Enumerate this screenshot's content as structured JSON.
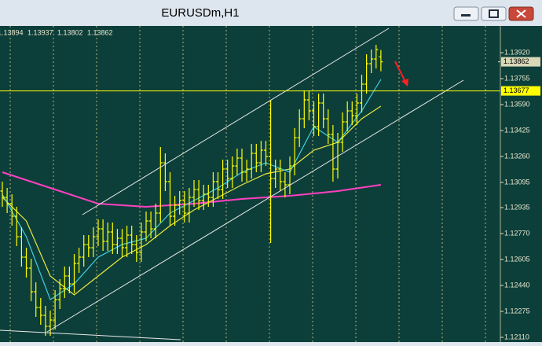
{
  "window": {
    "title": "EURUSDm,H1"
  },
  "chart_data": {
    "type": "ohlc",
    "ylim": [
      1.1209,
      1.1409
    ],
    "yticks": [
      {
        "value": 1.1392,
        "label": "1.13920"
      },
      1.13755,
      {
        "value": 1.1359,
        "label": "1.13590"
      },
      1.13425,
      {
        "value": 1.1326,
        "label": "1.13260"
      },
      1.13095,
      1.12935,
      {
        "value": 1.1277,
        "label": "1.12770"
      },
      1.12605,
      {
        "value": 1.1244,
        "label": "1.12440"
      },
      1.12275,
      {
        "value": 1.1211,
        "label": "1.12110"
      }
    ],
    "series": [
      {
        "color": "#ffff00",
        "values": [
          [
            1.1304,
            1.131,
            1.1294,
            1.13
          ],
          [
            1.13,
            1.1306,
            1.129,
            1.1296
          ],
          [
            1.1296,
            1.1302,
            1.1282,
            1.1288
          ],
          [
            1.1288,
            1.1294,
            1.1269,
            1.1275
          ],
          [
            1.1275,
            1.1281,
            1.1256,
            1.1262
          ],
          [
            1.1262,
            1.1268,
            1.1249,
            1.1255
          ],
          [
            1.1255,
            1.1261,
            1.1234,
            1.124
          ],
          [
            1.124,
            1.1246,
            1.1224,
            1.123
          ],
          [
            1.123,
            1.1236,
            1.1219,
            1.1225
          ],
          [
            1.1225,
            1.1231,
            1.1212,
            1.1218
          ],
          [
            1.1218,
            1.1228,
            1.1212,
            1.1222
          ],
          [
            1.1222,
            1.1241,
            1.1216,
            1.1235
          ],
          [
            1.1235,
            1.1248,
            1.1229,
            1.1242
          ],
          [
            1.1242,
            1.1256,
            1.1236,
            1.125
          ],
          [
            1.125,
            1.1256,
            1.1239,
            1.1245
          ],
          [
            1.1245,
            1.1264,
            1.1239,
            1.1258
          ],
          [
            1.1258,
            1.1268,
            1.1252,
            1.1262
          ],
          [
            1.1262,
            1.1276,
            1.1256,
            1.127
          ],
          [
            1.127,
            1.1276,
            1.1262,
            1.1268
          ],
          [
            1.1268,
            1.1281,
            1.1262,
            1.1275
          ],
          [
            1.1275,
            1.1286,
            1.1269,
            1.128
          ],
          [
            1.128,
            1.1286,
            1.1266,
            1.1272
          ],
          [
            1.1272,
            1.1284,
            1.1266,
            1.1278
          ],
          [
            1.1278,
            1.1284,
            1.1264,
            1.127
          ],
          [
            1.127,
            1.128,
            1.1264,
            1.1274
          ],
          [
            1.1274,
            1.128,
            1.1262,
            1.1268
          ],
          [
            1.1268,
            1.1282,
            1.1262,
            1.1276
          ],
          [
            1.1276,
            1.1282,
            1.1264,
            1.127
          ],
          [
            1.127,
            1.1276,
            1.1259,
            1.1265
          ],
          [
            1.1265,
            1.1284,
            1.1259,
            1.1278
          ],
          [
            1.1278,
            1.1291,
            1.1272,
            1.1285
          ],
          [
            1.1285,
            1.1291,
            1.1274,
            1.128
          ],
          [
            1.128,
            1.1296,
            1.1274,
            1.129
          ],
          [
            1.129,
            1.1332,
            1.1284,
            1.1322
          ],
          [
            1.1322,
            1.1328,
            1.1304,
            1.131
          ],
          [
            1.131,
            1.1316,
            1.1282,
            1.1288
          ],
          [
            1.1288,
            1.1301,
            1.1282,
            1.1295
          ],
          [
            1.1295,
            1.1304,
            1.1289,
            1.1298
          ],
          [
            1.1298,
            1.1304,
            1.1284,
            1.129
          ],
          [
            1.129,
            1.1306,
            1.1284,
            1.13
          ],
          [
            1.13,
            1.1311,
            1.1294,
            1.1305
          ],
          [
            1.1305,
            1.1311,
            1.1292,
            1.1298
          ],
          [
            1.1298,
            1.1308,
            1.1292,
            1.1302
          ],
          [
            1.1302,
            1.1308,
            1.1294,
            1.13
          ],
          [
            1.13,
            1.1316,
            1.1294,
            1.131
          ],
          [
            1.131,
            1.1316,
            1.1299,
            1.1305
          ],
          [
            1.1305,
            1.1324,
            1.1299,
            1.1318
          ],
          [
            1.1318,
            1.1324,
            1.1306,
            1.1312
          ],
          [
            1.1312,
            1.1326,
            1.1306,
            1.132
          ],
          [
            1.132,
            1.1331,
            1.1314,
            1.1325
          ],
          [
            1.1325,
            1.1331,
            1.131,
            1.1316
          ],
          [
            1.1316,
            1.1324,
            1.131,
            1.1318
          ],
          [
            1.1318,
            1.1334,
            1.1312,
            1.1328
          ],
          [
            1.1328,
            1.1334,
            1.1316,
            1.1322
          ],
          [
            1.1322,
            1.1336,
            1.1316,
            1.133
          ],
          [
            1.133,
            1.1336,
            1.132,
            1.1326
          ],
          [
            1.1326,
            1.1362,
            1.1271,
            1.1312
          ],
          [
            1.1312,
            1.1324,
            1.1306,
            1.1318
          ],
          [
            1.1318,
            1.1324,
            1.1304,
            1.131
          ],
          [
            1.131,
            1.1316,
            1.13,
            1.1308
          ],
          [
            1.1308,
            1.1326,
            1.1302,
            1.132
          ],
          [
            1.132,
            1.1344,
            1.1314,
            1.1338
          ],
          [
            1.1338,
            1.1356,
            1.1332,
            1.135
          ],
          [
            1.135,
            1.1368,
            1.1344,
            1.1362
          ],
          [
            1.1362,
            1.1368,
            1.1349,
            1.1355
          ],
          [
            1.1355,
            1.1361,
            1.1339,
            1.1345
          ],
          [
            1.1345,
            1.1366,
            1.1339,
            1.136
          ],
          [
            1.136,
            1.1366,
            1.1344,
            1.135
          ],
          [
            1.135,
            1.1356,
            1.1334,
            1.134
          ],
          [
            1.134,
            1.1346,
            1.131,
            1.1318
          ],
          [
            1.1318,
            1.1341,
            1.1312,
            1.1335
          ],
          [
            1.1335,
            1.1354,
            1.1329,
            1.1348
          ],
          [
            1.1348,
            1.1361,
            1.1342,
            1.1355
          ],
          [
            1.1355,
            1.1361,
            1.1346,
            1.1352
          ],
          [
            1.1352,
            1.1366,
            1.1346,
            1.136
          ],
          [
            1.136,
            1.1378,
            1.1354,
            1.1372
          ],
          [
            1.1372,
            1.1391,
            1.1366,
            1.1385
          ],
          [
            1.1385,
            1.1394,
            1.1379,
            1.1388
          ],
          [
            1.1388,
            1.1397,
            1.1382,
            1.1394
          ],
          [
            1.13894,
            1.13937,
            1.13802,
            1.13862
          ]
        ]
      }
    ],
    "lines": [
      {
        "color": "#ff40c0",
        "x": [
          0,
          10,
          20,
          30,
          40,
          50,
          60,
          70,
          79
        ],
        "values": [
          1.1316,
          1.1306,
          1.1296,
          1.1294,
          1.1296,
          1.1299,
          1.1301,
          1.1304,
          1.1308
        ]
      },
      {
        "color": "#e8e840",
        "x": [
          0,
          5,
          10,
          15,
          20,
          25,
          30,
          35,
          40,
          45,
          50,
          55,
          60,
          65,
          70,
          75,
          79
        ],
        "values": [
          1.13,
          1.1285,
          1.125,
          1.1238,
          1.125,
          1.1262,
          1.127,
          1.1282,
          1.1292,
          1.13,
          1.1308,
          1.1315,
          1.1318,
          1.133,
          1.1335,
          1.135,
          1.1358
        ]
      },
      {
        "color": "#40d0e0",
        "x": [
          0,
          5,
          10,
          15,
          20,
          25,
          30,
          35,
          40,
          45,
          50,
          55,
          60,
          65,
          70,
          75,
          79
        ],
        "values": [
          1.1302,
          1.1275,
          1.1235,
          1.1245,
          1.1262,
          1.127,
          1.1274,
          1.129,
          1.1298,
          1.1306,
          1.1316,
          1.1322,
          1.1316,
          1.1345,
          1.1335,
          1.1355,
          1.1375
        ]
      }
    ],
    "hline": {
      "value": 1.13677,
      "color": "#ffff00"
    }
  }
}
